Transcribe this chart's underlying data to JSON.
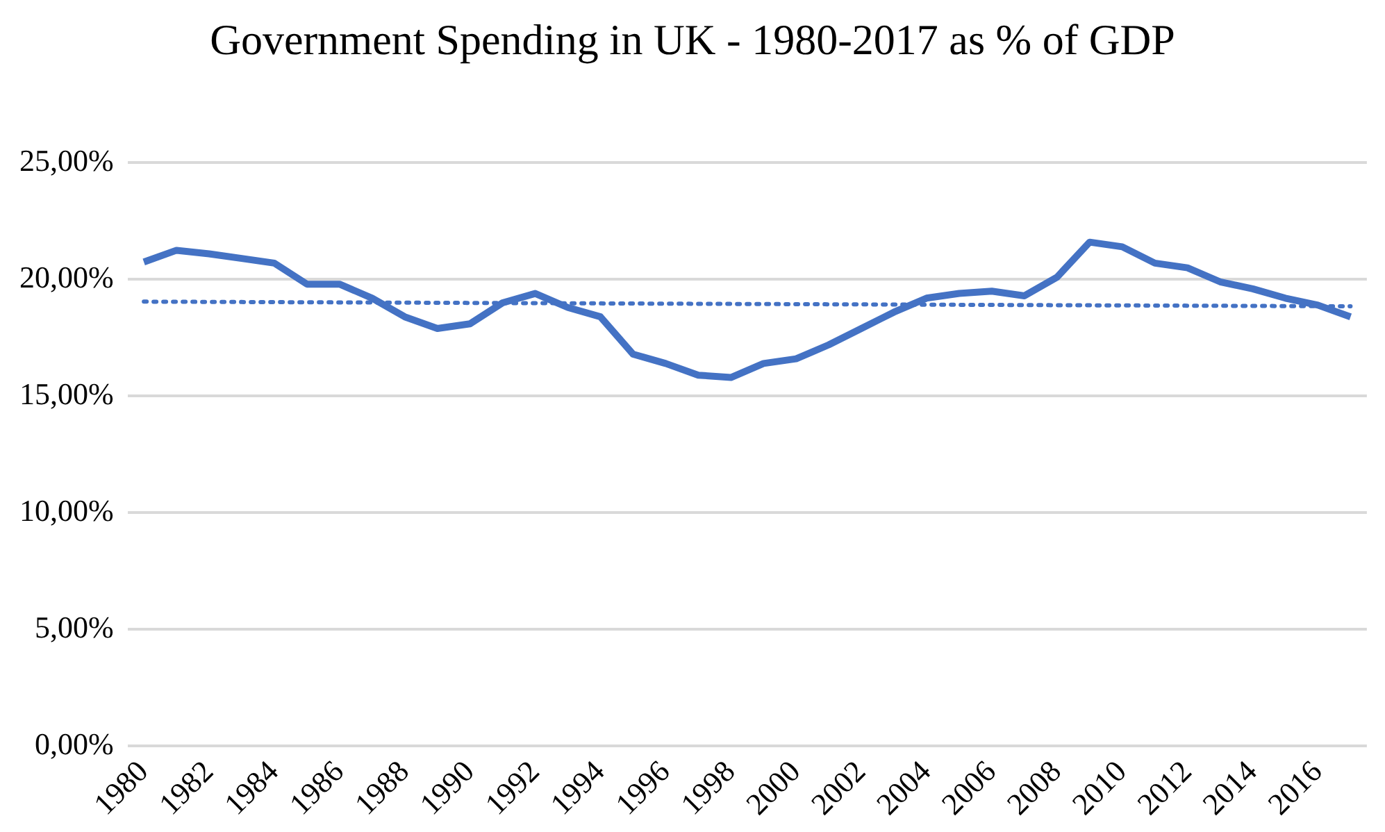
{
  "chart_data": {
    "type": "line",
    "title": "Government Spending in UK - 1980-2017 as % of GDP",
    "categories": [
      "1980",
      null,
      "1982",
      null,
      "1984",
      null,
      "1986",
      null,
      "1988",
      null,
      "1990",
      null,
      "1992",
      null,
      "1994",
      null,
      "1996",
      null,
      "1998",
      null,
      "2000",
      null,
      "2002",
      null,
      "2004",
      null,
      "2006",
      null,
      "2008",
      null,
      "2010",
      null,
      "2012",
      null,
      "2014",
      null,
      "2016",
      null
    ],
    "series": [
      {
        "color": "#4472c4",
        "line_style": "solid",
        "values": [
          20.75,
          21.25,
          21.1,
          20.9,
          20.7,
          19.8,
          19.8,
          19.2,
          18.4,
          17.9,
          18.1,
          19.0,
          19.4,
          18.8,
          18.4,
          16.8,
          16.4,
          15.9,
          15.8,
          16.4,
          16.6,
          17.2,
          17.9,
          18.6,
          19.2,
          19.4,
          19.5,
          19.3,
          20.1,
          21.6,
          21.4,
          20.7,
          20.5,
          19.9,
          19.6,
          19.2,
          18.9,
          18.4
        ]
      },
      {
        "type": "line",
        "color": "#4472c4",
        "line_style": "dotted",
        "values": [
          19.05,
          null,
          null,
          null,
          null,
          null,
          null,
          null,
          null,
          null,
          null,
          null,
          null,
          null,
          null,
          null,
          null,
          null,
          null,
          null,
          null,
          null,
          null,
          null,
          null,
          null,
          null,
          null,
          null,
          null,
          null,
          null,
          null,
          null,
          null,
          null,
          null,
          18.85
        ]
      }
    ],
    "ylim": [
      0,
      25
    ],
    "yticks": [
      {
        "value": 0,
        "label": "0,00%"
      },
      {
        "value": 5,
        "label": "5,00%"
      },
      {
        "value": 10,
        "label": "10,00%"
      },
      {
        "value": 15,
        "label": "15,00%"
      },
      {
        "value": 20,
        "label": "20,00%"
      },
      {
        "value": 25,
        "label": "25,00%"
      }
    ],
    "grid": "y",
    "legend": false,
    "marker": "none"
  }
}
